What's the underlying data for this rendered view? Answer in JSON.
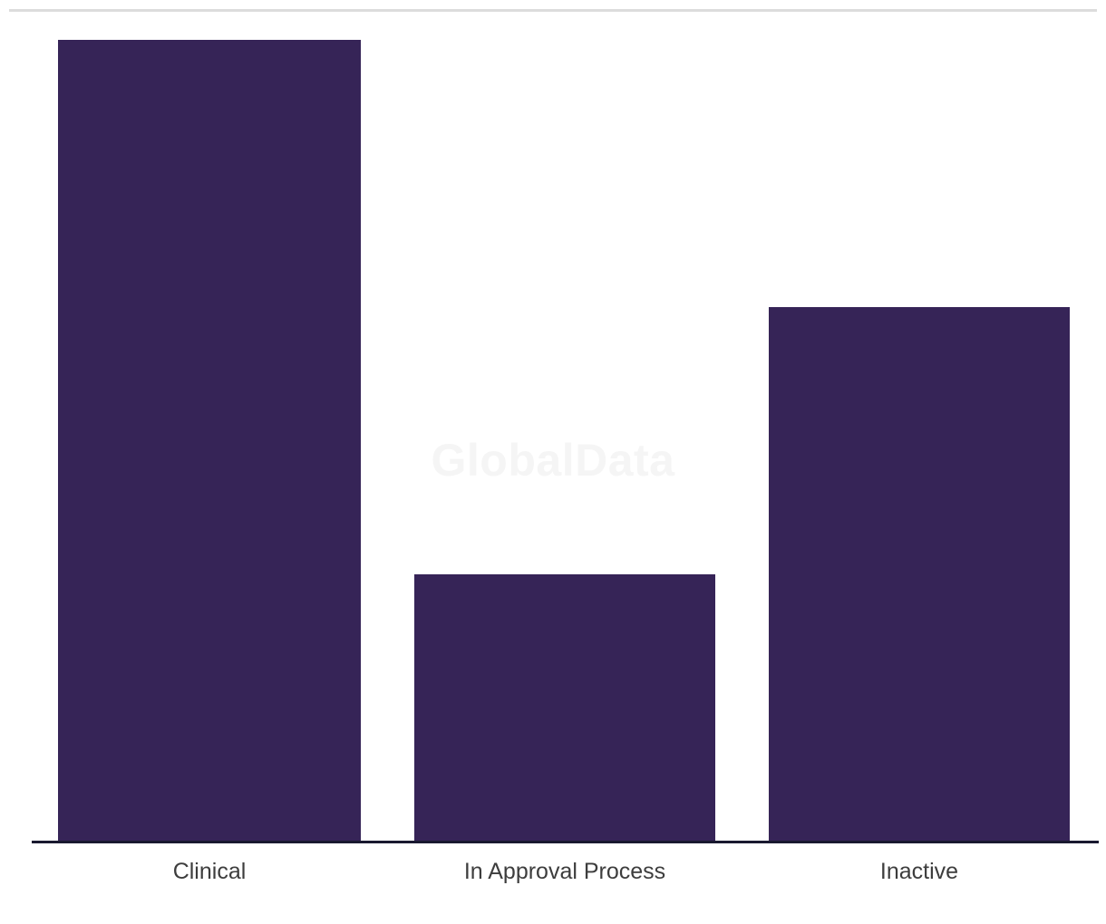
{
  "watermark": {
    "text": "GlobalData",
    "color": "#f5f5f5"
  },
  "frame": {
    "divider_color": "#dcdcdc"
  },
  "chart_data": {
    "type": "bar",
    "title": "",
    "xlabel": "",
    "ylabel": "",
    "categories": [
      "Clinical",
      "In Approval Process",
      "Inactive"
    ],
    "values": [
      3,
      1,
      2
    ],
    "ylim": [
      0,
      3
    ],
    "grid": false,
    "legend": false,
    "y_axis_visible": false,
    "bar_color": "#362457",
    "axis_line_color": "#191930",
    "tick_label_color": "#3d3d3d",
    "background_color": "#ffffff"
  }
}
